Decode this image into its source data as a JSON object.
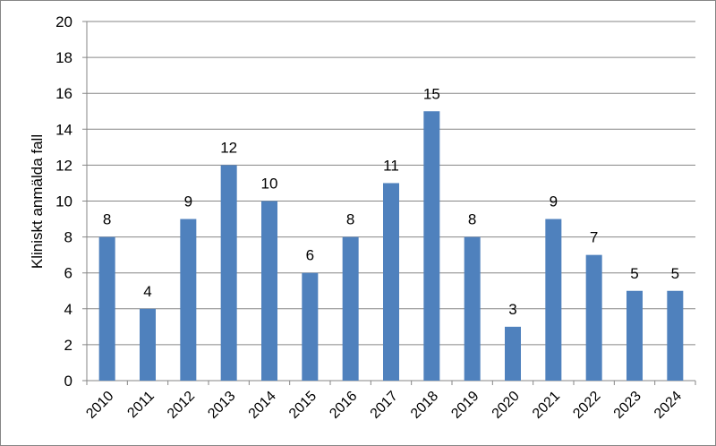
{
  "chart_data": {
    "type": "bar",
    "title": "",
    "xlabel": "",
    "ylabel": "Kliniskt anmälda fall",
    "ylim": [
      0,
      20
    ],
    "yticks": [
      0,
      2,
      4,
      6,
      8,
      10,
      12,
      14,
      16,
      18,
      20
    ],
    "grid": true,
    "legend": "none",
    "bar_color": "#4f81bd",
    "categories": [
      "2010",
      "2011",
      "2012",
      "2013",
      "2014",
      "2015",
      "2016",
      "2017",
      "2018",
      "2019",
      "2020",
      "2021",
      "2022",
      "2023",
      "2024"
    ],
    "values": [
      8,
      4,
      9,
      12,
      10,
      6,
      8,
      11,
      15,
      8,
      3,
      9,
      7,
      5,
      5
    ]
  }
}
